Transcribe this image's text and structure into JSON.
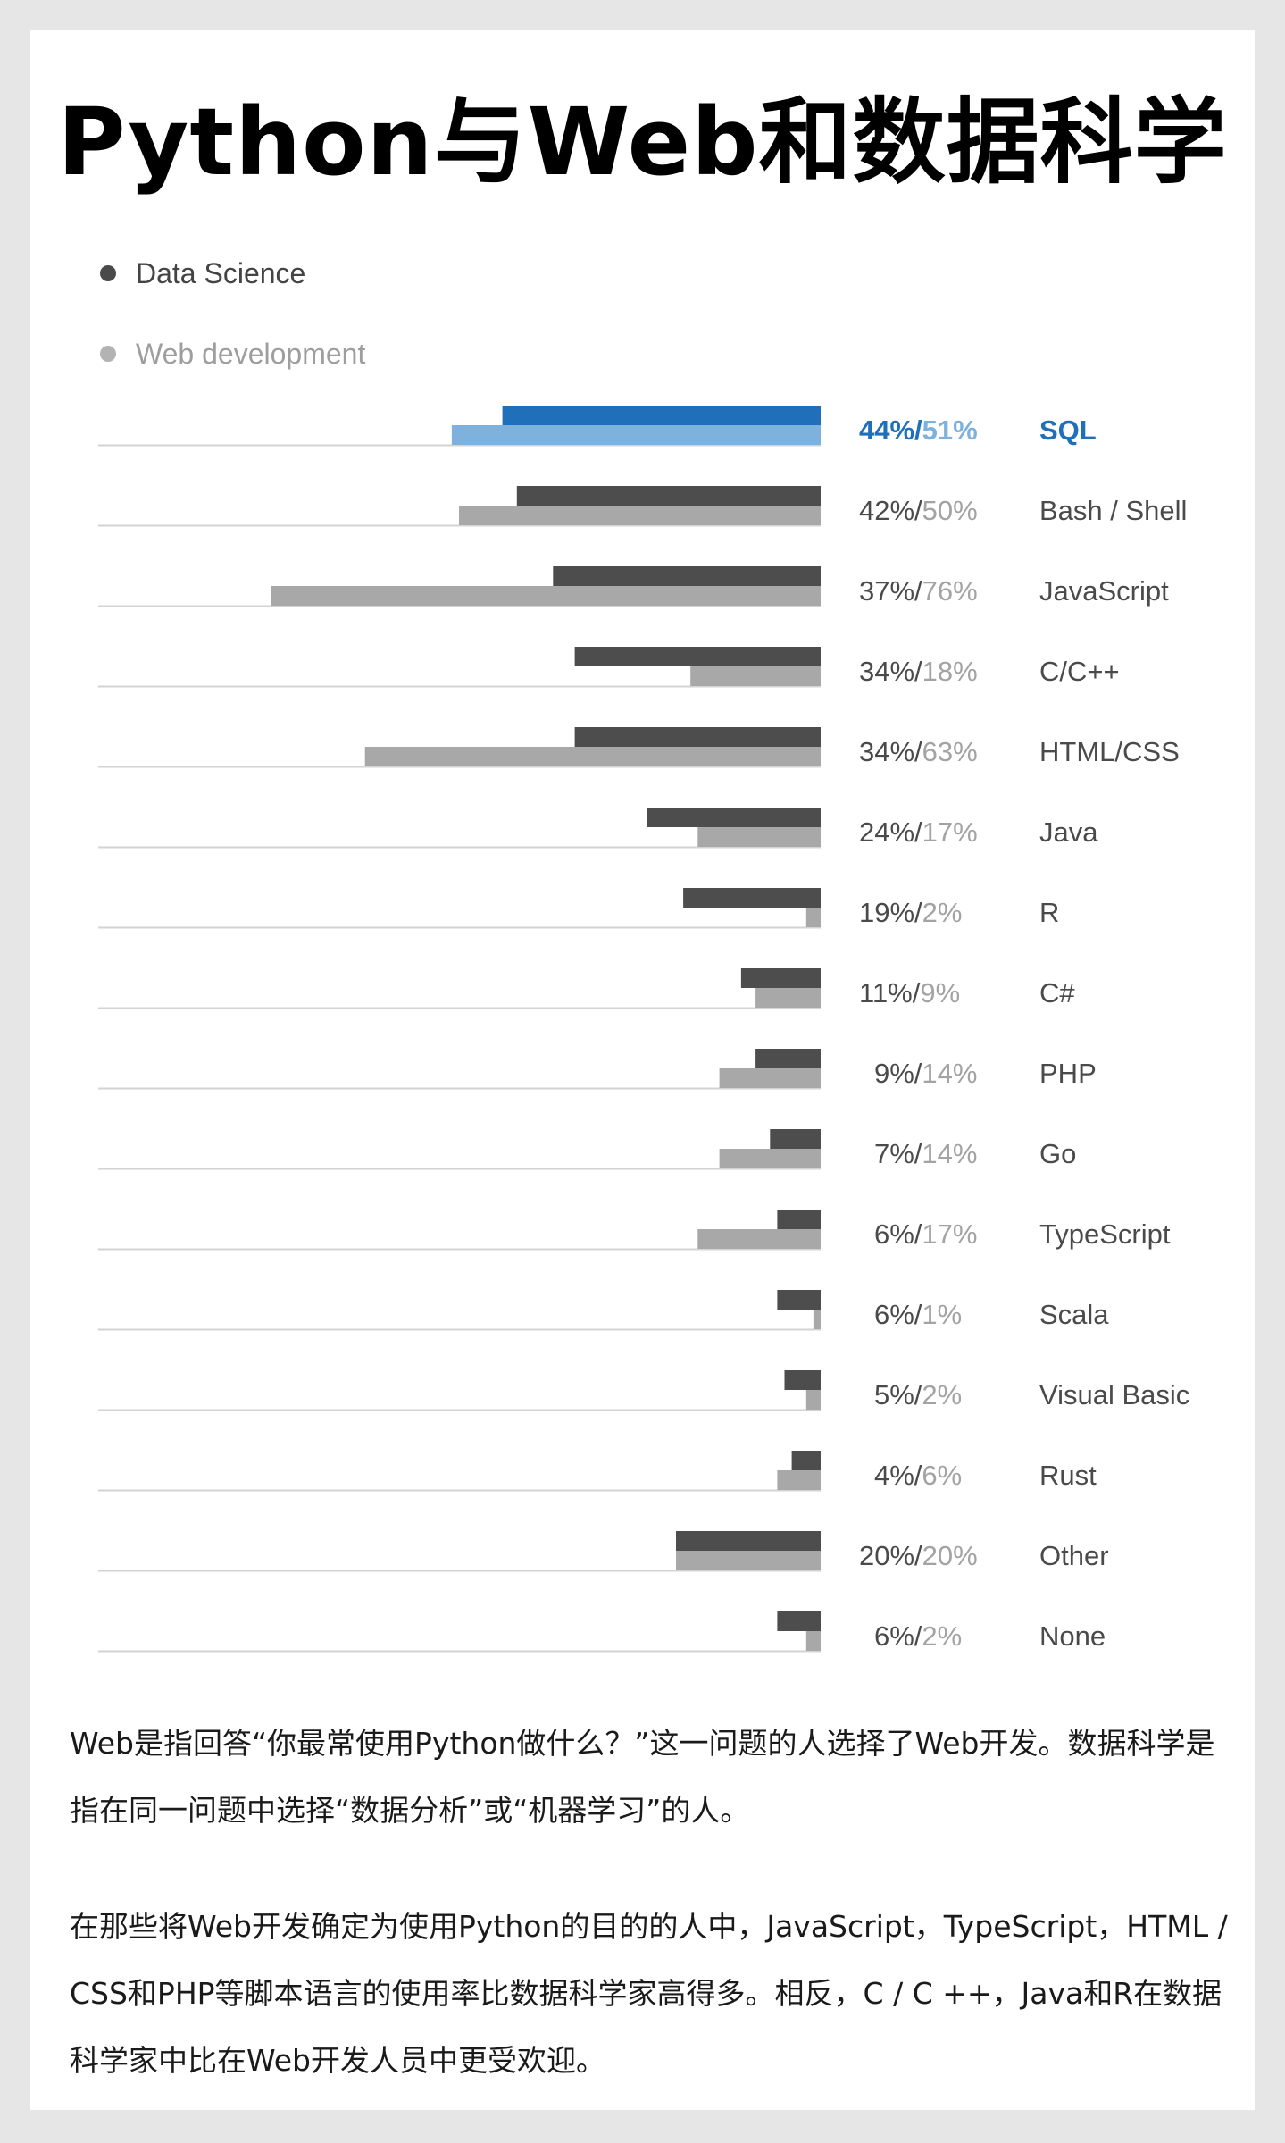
{
  "title": "Python与Web和数据科学",
  "chart_data": {
    "type": "bar",
    "orientation": "horizontal",
    "legend": [
      "Data Science",
      "Web development"
    ],
    "categories": [
      "SQL",
      "Bash / Shell",
      "JavaScript",
      "C/C++",
      "HTML/CSS",
      "Java",
      "R",
      "C#",
      "PHP",
      "Go",
      "TypeScript",
      "Scala",
      "Visual Basic",
      "Rust",
      "Other",
      "None"
    ],
    "series": [
      {
        "name": "Data Science",
        "values": [
          44,
          42,
          37,
          34,
          34,
          24,
          19,
          11,
          9,
          7,
          6,
          6,
          5,
          4,
          20,
          6
        ]
      },
      {
        "name": "Web development",
        "values": [
          51,
          50,
          76,
          18,
          63,
          17,
          2,
          9,
          14,
          14,
          17,
          1,
          2,
          6,
          20,
          2
        ]
      }
    ],
    "value_labels": [
      [
        "44%",
        "51%"
      ],
      [
        "42%",
        "50%"
      ],
      [
        "37%",
        "76%"
      ],
      [
        "34%",
        "18%"
      ],
      [
        "34%",
        "63%"
      ],
      [
        "24%",
        "17%"
      ],
      [
        "19%",
        "2%"
      ],
      [
        "11%",
        "9%"
      ],
      [
        "9%",
        "14%"
      ],
      [
        "7%",
        "14%"
      ],
      [
        "6%",
        "17%"
      ],
      [
        "6%",
        "1%"
      ],
      [
        "5%",
        "2%"
      ],
      [
        "4%",
        "6%"
      ],
      [
        "20%",
        "20%"
      ],
      [
        "6%",
        "2%"
      ]
    ],
    "highlight": "SQL",
    "unit": "%",
    "colors": {
      "ds": "#4d4d4d",
      "web": "#a8a8a8",
      "highlight_ds": "#1f6fba",
      "highlight_web": "#7fb1dd",
      "label_ds": "#4a4a4a",
      "label_web": "#a3a3a3",
      "baseline": "#d3d3d3"
    }
  },
  "paragraphs": [
    "Web是指回答“你最常使用Python做什么？”这一问题的人选择了Web开发。数据科学是指在同一问题中选择“数据分析”或“机器学习”的人。",
    "在那些将Web开发确定为使用Python的目的的人中，JavaScript，TypeScript，HTML / CSS和PHP等脚本语言的使用率比数据科学家高得多。相反，C / C ++，Java和R在数据科学家中比在Web开发人员中更受欢迎。"
  ]
}
